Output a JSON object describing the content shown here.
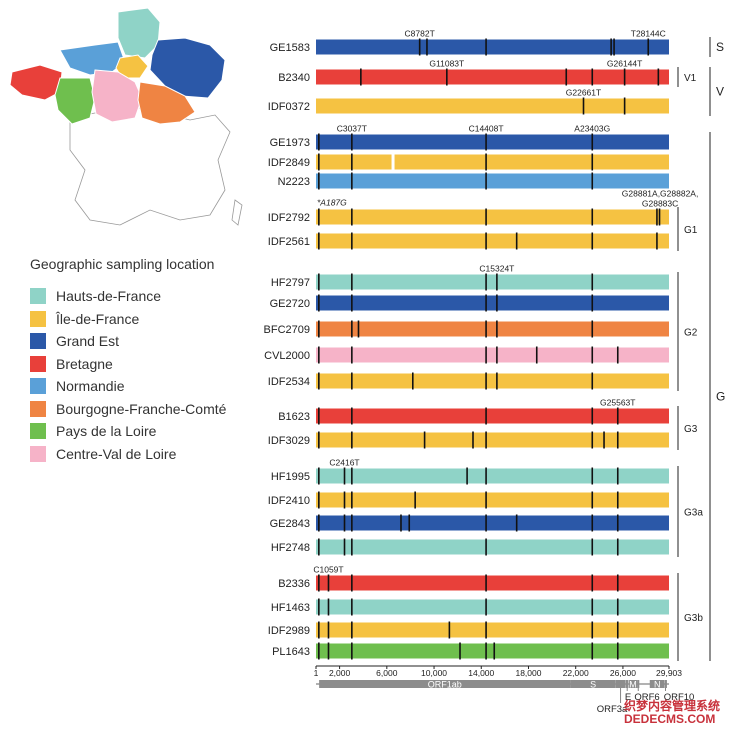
{
  "map_region_names": [
    "Hauts-de-France",
    "Île-de-France",
    "Grand Est",
    "Bretagne",
    "Normandie",
    "Bourgogne-Franche-Comté",
    "Pays de la Loire",
    "Centre-Val de Loire"
  ],
  "legend": {
    "title": "Geographic sampling location",
    "items": [
      {
        "label": "Hauts-de-France",
        "color": "#8fd3c7"
      },
      {
        "label": "Île-de-France",
        "color": "#f5c242"
      },
      {
        "label": "Grand Est",
        "color": "#2b58a8"
      },
      {
        "label": "Bretagne",
        "color": "#e8403a"
      },
      {
        "label": "Normandie",
        "color": "#5aa0d8"
      },
      {
        "label": "Bourgogne-Franche-Comté",
        "color": "#ef8443"
      },
      {
        "label": "Pays de la Loire",
        "color": "#6fbf4e"
      },
      {
        "label": "Centre-Val de Loire",
        "color": "#f6b3c8"
      }
    ]
  },
  "genome": {
    "length": 29903,
    "axis_ticks": [
      {
        "label": "1",
        "pos": 1
      },
      {
        "label": "2,000",
        "pos": 2000
      },
      {
        "label": "6,000",
        "pos": 6000
      },
      {
        "label": "10,000",
        "pos": 10000
      },
      {
        "label": "14,000",
        "pos": 14000
      },
      {
        "label": "18,000",
        "pos": 18000
      },
      {
        "label": "22,000",
        "pos": 22000
      },
      {
        "label": "26,000",
        "pos": 26000
      },
      {
        "label": "29,903",
        "pos": 29903
      }
    ],
    "genes": [
      {
        "label": "ORF1ab",
        "start": 266,
        "end": 21555
      },
      {
        "label": "S",
        "start": 21563,
        "end": 25384
      },
      {
        "label": "ORF3a",
        "start": 25393,
        "end": 26220
      },
      {
        "label": "E",
        "start": 26245,
        "end": 26472
      },
      {
        "label": "M",
        "start": 26523,
        "end": 27191
      },
      {
        "label": "ORF6",
        "start": 27202,
        "end": 27387
      },
      {
        "label": "N",
        "start": 28274,
        "end": 29533
      },
      {
        "label": "ORF10",
        "start": 29558,
        "end": 29674
      }
    ]
  },
  "samples": [
    {
      "id": "GE1583",
      "region": "Grand Est",
      "muts": [
        8782,
        9400,
        14408,
        25000,
        25250,
        28144
      ]
    },
    {
      "id": "B2340",
      "region": "Bretagne",
      "muts": [
        3800,
        11083,
        21200,
        23403,
        26144,
        29000
      ]
    },
    {
      "id": "IDF0372",
      "region": "Île-de-France",
      "muts": [
        22661,
        26144
      ]
    },
    {
      "id": "GE1973",
      "region": "Grand Est",
      "muts": [
        241,
        3037,
        14408,
        23403
      ]
    },
    {
      "id": "IDF2849",
      "region": "Île-de-France",
      "muts": [
        241,
        3037,
        14408,
        23403
      ]
    },
    {
      "id": "N2223",
      "region": "Normandie",
      "muts": [
        241,
        3037,
        14408,
        23403
      ]
    },
    {
      "id": "IDF2792",
      "region": "Île-de-France",
      "muts": [
        241,
        3037,
        14408,
        23403,
        28881,
        29100
      ]
    },
    {
      "id": "IDF2561",
      "region": "Île-de-France",
      "muts": [
        241,
        3037,
        14408,
        17000,
        23403,
        28881
      ]
    },
    {
      "id": "HF2797",
      "region": "Hauts-de-France",
      "muts": [
        241,
        3037,
        14408,
        15324,
        23403
      ]
    },
    {
      "id": "GE2720",
      "region": "Grand Est",
      "muts": [
        241,
        3037,
        14408,
        15324,
        23403
      ]
    },
    {
      "id": "BFC2709",
      "region": "Bourgogne-Franche-Comté",
      "muts": [
        241,
        3037,
        3600,
        14408,
        15324,
        23403
      ]
    },
    {
      "id": "CVL2000",
      "region": "Centre-Val de Loire",
      "muts": [
        241,
        3037,
        14408,
        15324,
        18700,
        23403,
        25563
      ]
    },
    {
      "id": "IDF2534",
      "region": "Île-de-France",
      "muts": [
        241,
        3037,
        8200,
        14408,
        15324,
        23403
      ]
    },
    {
      "id": "B1623",
      "region": "Bretagne",
      "muts": [
        241,
        3037,
        14408,
        23403,
        25563
      ]
    },
    {
      "id": "IDF3029",
      "region": "Île-de-France",
      "muts": [
        241,
        3037,
        9200,
        13300,
        14408,
        23403,
        24400,
        25563
      ]
    },
    {
      "id": "HF1995",
      "region": "Hauts-de-France",
      "muts": [
        241,
        2416,
        3037,
        12800,
        14408,
        23403,
        25563
      ]
    },
    {
      "id": "IDF2410",
      "region": "Île-de-France",
      "muts": [
        241,
        2416,
        3037,
        8400,
        14408,
        23403,
        25563
      ]
    },
    {
      "id": "GE2843",
      "region": "Grand Est",
      "muts": [
        241,
        2416,
        3037,
        7200,
        7900,
        14408,
        17000,
        23403,
        25563
      ]
    },
    {
      "id": "HF2748",
      "region": "Hauts-de-France",
      "muts": [
        241,
        2416,
        3037,
        14408,
        23403,
        25563
      ]
    },
    {
      "id": "B2336",
      "region": "Bretagne",
      "muts": [
        241,
        1059,
        3037,
        14408,
        23403,
        25563
      ]
    },
    {
      "id": "HF1463",
      "region": "Hauts-de-France",
      "muts": [
        241,
        1059,
        3037,
        14408,
        23403,
        25563
      ]
    },
    {
      "id": "IDF2989",
      "region": "Île-de-France",
      "muts": [
        241,
        1059,
        3037,
        11300,
        14408,
        23403,
        25563
      ]
    },
    {
      "id": "PL1643",
      "region": "Pays de la Loire",
      "muts": [
        241,
        1059,
        3037,
        12200,
        14408,
        15100,
        23403,
        25563
      ]
    }
  ],
  "mutation_labels": [
    {
      "text": "C8782T",
      "sample": "GE1583",
      "pos": 8782
    },
    {
      "text": "T28144C",
      "sample": "GE1583",
      "pos": 28144
    },
    {
      "text": "G11083T",
      "sample": "B2340",
      "pos": 11083
    },
    {
      "text": "G26144T",
      "sample": "B2340",
      "pos": 26144
    },
    {
      "text": "G22661T",
      "sample": "IDF0372",
      "pos": 22661
    },
    {
      "text": "C3037T",
      "sample": "GE1973",
      "pos": 3037
    },
    {
      "text": "C14408T",
      "sample": "GE1973",
      "pos": 14408
    },
    {
      "text": "A23403G",
      "sample": "GE1973",
      "pos": 23403
    },
    {
      "text": "*A187G",
      "sample": "IDF2792",
      "pos": 187,
      "italic": true
    },
    {
      "text": "G28881A,G28882A,",
      "sample": "IDF2792",
      "pos": 28300,
      "line": 2
    },
    {
      "text": "G28883C",
      "sample": "IDF2792",
      "pos": 28300,
      "line": 1
    },
    {
      "text": "C15324T",
      "sample": "HF2797",
      "pos": 15324
    },
    {
      "text": "G25563T",
      "sample": "B1623",
      "pos": 25563
    },
    {
      "text": "C2416T",
      "sample": "HF1995",
      "pos": 2416
    },
    {
      "text": "C1059T",
      "sample": "B2336",
      "pos": 1059
    }
  ],
  "clades": [
    {
      "label": "S",
      "from": "GE1583",
      "to": "GE1583",
      "level": 1
    },
    {
      "label": "V1",
      "from": "B2340",
      "to": "B2340",
      "level": 0
    },
    {
      "label": "V",
      "from": "B2340",
      "to": "IDF0372",
      "level": 1
    },
    {
      "label": "G1",
      "from": "IDF2792",
      "to": "IDF2561",
      "level": 0
    },
    {
      "label": "G2",
      "from": "HF2797",
      "to": "IDF2534",
      "level": 0
    },
    {
      "label": "G3",
      "from": "B1623",
      "to": "IDF3029",
      "level": 0
    },
    {
      "label": "G3a",
      "from": "HF1995",
      "to": "HF2748",
      "level": 0
    },
    {
      "label": "G3b",
      "from": "B2336",
      "to": "PL1643",
      "level": 0
    },
    {
      "label": "G",
      "from": "GE1973",
      "to": "PL1643",
      "level": 1
    }
  ],
  "watermark": [
    "织梦内容管理系统",
    "DEDECMS.COM"
  ]
}
